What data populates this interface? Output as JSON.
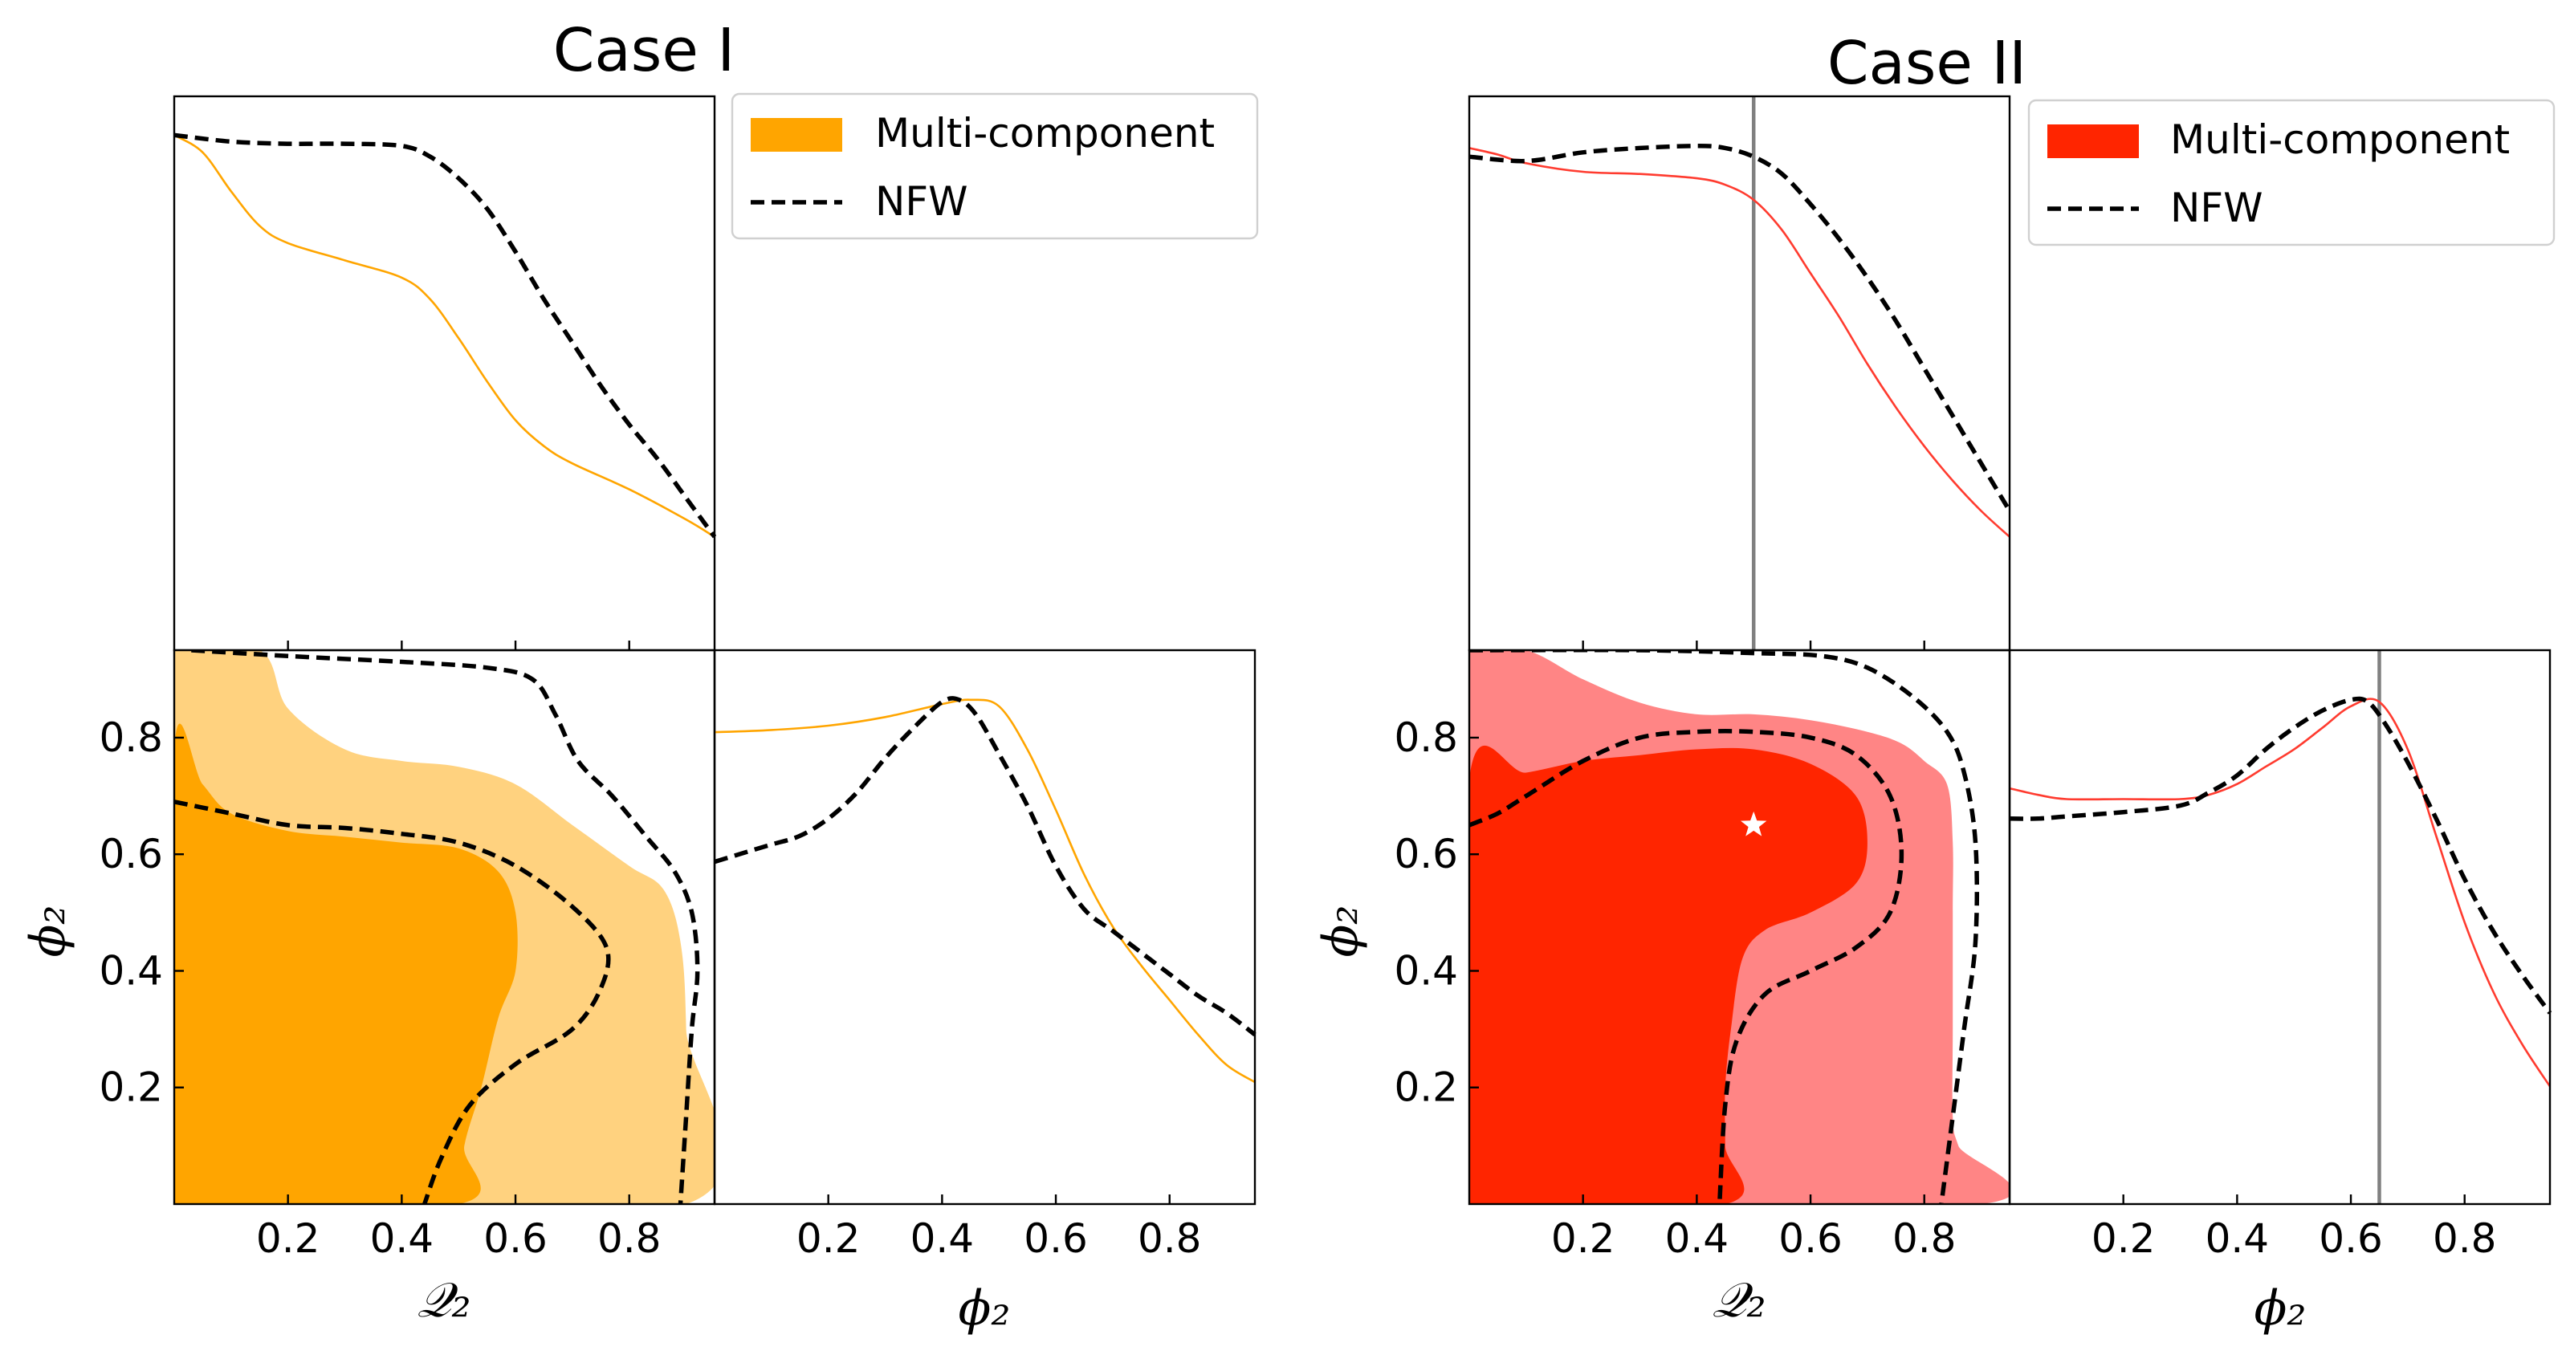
{
  "colors": {
    "case1_line": "#FFA500",
    "case1_fill_1sigma": "#FFA500",
    "case1_fill_2sigma": "#FFD27F",
    "case2_line": "#FF3B2F",
    "case2_fill_1sigma": "#FF2500",
    "case2_fill_2sigma": "#FF8585",
    "nfw": "#000000",
    "truth_line": "#808080",
    "truth_marker": "#ffffff"
  },
  "chart_data": [
    {
      "type": "corner",
      "title": "Case I",
      "params": [
        "Q2",
        "φ2"
      ],
      "param_labels": {
        "Q2": "𝒬₂",
        "phi2": "ϕ₂"
      },
      "xlabel_left": "𝒬₂",
      "xlabel_right": "ϕ₂",
      "ylabel": "ϕ₂",
      "xlim": [
        0,
        0.95
      ],
      "ylim": [
        0,
        0.95
      ],
      "x_ticks": [
        0.2,
        0.4,
        0.6,
        0.8
      ],
      "x_tick_labels": [
        "0.2",
        "0.4",
        "0.6",
        "0.8"
      ],
      "y_ticks": [
        0.2,
        0.4,
        0.6,
        0.8
      ],
      "y_tick_labels": [
        "0.2",
        "0.4",
        "0.6",
        "0.8"
      ],
      "legend": {
        "position": "top-right",
        "entries": [
          "Multi-component",
          "NFW"
        ]
      },
      "truth": null,
      "marginal_Q2": {
        "multi_component": [
          [
            0.0,
            1.0
          ],
          [
            0.05,
            0.96
          ],
          [
            0.1,
            0.87
          ],
          [
            0.15,
            0.79
          ],
          [
            0.2,
            0.75
          ],
          [
            0.3,
            0.71
          ],
          [
            0.4,
            0.67
          ],
          [
            0.45,
            0.62
          ],
          [
            0.5,
            0.53
          ],
          [
            0.55,
            0.43
          ],
          [
            0.6,
            0.34
          ],
          [
            0.65,
            0.28
          ],
          [
            0.7,
            0.24
          ],
          [
            0.8,
            0.18
          ],
          [
            0.9,
            0.11
          ],
          [
            0.95,
            0.07
          ]
        ],
        "nfw": [
          [
            0.0,
            1.0
          ],
          [
            0.1,
            0.985
          ],
          [
            0.2,
            0.98
          ],
          [
            0.3,
            0.98
          ],
          [
            0.4,
            0.975
          ],
          [
            0.45,
            0.95
          ],
          [
            0.5,
            0.9
          ],
          [
            0.55,
            0.83
          ],
          [
            0.6,
            0.73
          ],
          [
            0.65,
            0.62
          ],
          [
            0.7,
            0.52
          ],
          [
            0.75,
            0.42
          ],
          [
            0.8,
            0.33
          ],
          [
            0.85,
            0.25
          ],
          [
            0.9,
            0.16
          ],
          [
            0.95,
            0.07
          ]
        ]
      },
      "marginal_phi2": {
        "multi_component": [
          [
            0.0,
            0.9
          ],
          [
            0.1,
            0.905
          ],
          [
            0.2,
            0.915
          ],
          [
            0.3,
            0.935
          ],
          [
            0.4,
            0.965
          ],
          [
            0.45,
            0.975
          ],
          [
            0.5,
            0.96
          ],
          [
            0.55,
            0.86
          ],
          [
            0.6,
            0.72
          ],
          [
            0.65,
            0.57
          ],
          [
            0.7,
            0.45
          ],
          [
            0.75,
            0.36
          ],
          [
            0.8,
            0.28
          ],
          [
            0.85,
            0.2
          ],
          [
            0.9,
            0.13
          ],
          [
            0.95,
            0.09
          ]
        ],
        "nfw": [
          [
            0.0,
            0.6
          ],
          [
            0.05,
            0.62
          ],
          [
            0.1,
            0.64
          ],
          [
            0.15,
            0.66
          ],
          [
            0.2,
            0.7
          ],
          [
            0.25,
            0.76
          ],
          [
            0.3,
            0.84
          ],
          [
            0.35,
            0.91
          ],
          [
            0.4,
            0.97
          ],
          [
            0.43,
            0.975
          ],
          [
            0.46,
            0.94
          ],
          [
            0.5,
            0.85
          ],
          [
            0.55,
            0.73
          ],
          [
            0.6,
            0.59
          ],
          [
            0.65,
            0.49
          ],
          [
            0.7,
            0.44
          ],
          [
            0.75,
            0.39
          ],
          [
            0.8,
            0.34
          ],
          [
            0.85,
            0.29
          ],
          [
            0.9,
            0.25
          ],
          [
            0.95,
            0.2
          ]
        ]
      },
      "joint_contours": {
        "multi_component_2sigma": [
          [
            0.0,
            0.0
          ],
          [
            0.0,
            0.95
          ],
          [
            0.15,
            0.95
          ],
          [
            0.2,
            0.85
          ],
          [
            0.3,
            0.78
          ],
          [
            0.4,
            0.76
          ],
          [
            0.5,
            0.75
          ],
          [
            0.6,
            0.72
          ],
          [
            0.7,
            0.65
          ],
          [
            0.8,
            0.58
          ],
          [
            0.86,
            0.54
          ],
          [
            0.89,
            0.45
          ],
          [
            0.9,
            0.3
          ],
          [
            0.9,
            0.0
          ]
        ],
        "multi_component_1sigma": [
          [
            0.0,
            0.0
          ],
          [
            0.0,
            0.78
          ],
          [
            0.05,
            0.72
          ],
          [
            0.1,
            0.67
          ],
          [
            0.2,
            0.64
          ],
          [
            0.3,
            0.63
          ],
          [
            0.4,
            0.62
          ],
          [
            0.5,
            0.61
          ],
          [
            0.57,
            0.57
          ],
          [
            0.6,
            0.5
          ],
          [
            0.6,
            0.4
          ],
          [
            0.57,
            0.32
          ],
          [
            0.54,
            0.2
          ],
          [
            0.51,
            0.1
          ],
          [
            0.5,
            0.0
          ]
        ],
        "nfw_1sigma": [
          [
            0.0,
            0.69
          ],
          [
            0.1,
            0.67
          ],
          [
            0.2,
            0.65
          ],
          [
            0.3,
            0.645
          ],
          [
            0.4,
            0.635
          ],
          [
            0.5,
            0.62
          ],
          [
            0.6,
            0.58
          ],
          [
            0.7,
            0.51
          ],
          [
            0.76,
            0.44
          ],
          [
            0.75,
            0.37
          ],
          [
            0.7,
            0.3
          ],
          [
            0.6,
            0.24
          ],
          [
            0.52,
            0.17
          ],
          [
            0.47,
            0.08
          ],
          [
            0.44,
            0.0
          ]
        ],
        "nfw_2sigma": [
          [
            0.03,
            0.95
          ],
          [
            0.2,
            0.94
          ],
          [
            0.4,
            0.93
          ],
          [
            0.55,
            0.92
          ],
          [
            0.63,
            0.9
          ],
          [
            0.67,
            0.84
          ],
          [
            0.71,
            0.76
          ],
          [
            0.77,
            0.7
          ],
          [
            0.83,
            0.63
          ],
          [
            0.88,
            0.57
          ],
          [
            0.91,
            0.5
          ],
          [
            0.92,
            0.4
          ],
          [
            0.91,
            0.3
          ],
          [
            0.9,
            0.15
          ],
          [
            0.89,
            0.0
          ]
        ]
      }
    },
    {
      "type": "corner",
      "title": "Case II",
      "params": [
        "Q2",
        "φ2"
      ],
      "param_labels": {
        "Q2": "𝒬₂",
        "phi2": "ϕ₂"
      },
      "xlabel_left": "𝒬₂",
      "xlabel_right": "ϕ₂",
      "ylabel": "ϕ₂",
      "xlim": [
        0,
        0.95
      ],
      "ylim": [
        0,
        0.95
      ],
      "x_ticks": [
        0.2,
        0.4,
        0.6,
        0.8
      ],
      "x_tick_labels": [
        "0.2",
        "0.4",
        "0.6",
        "0.8"
      ],
      "y_ticks": [
        0.2,
        0.4,
        0.6,
        0.8
      ],
      "y_tick_labels": [
        "0.2",
        "0.4",
        "0.6",
        "0.8"
      ],
      "legend": {
        "position": "top-right",
        "entries": [
          "Multi-component",
          "NFW"
        ]
      },
      "truth": {
        "Q2": 0.5,
        "phi2": 0.65
      },
      "marginal_Q2": {
        "multi_component": [
          [
            0.0,
            0.97
          ],
          [
            0.05,
            0.955
          ],
          [
            0.1,
            0.935
          ],
          [
            0.2,
            0.915
          ],
          [
            0.3,
            0.91
          ],
          [
            0.4,
            0.9
          ],
          [
            0.45,
            0.885
          ],
          [
            0.5,
            0.85
          ],
          [
            0.55,
            0.78
          ],
          [
            0.6,
            0.68
          ],
          [
            0.65,
            0.58
          ],
          [
            0.7,
            0.47
          ],
          [
            0.75,
            0.37
          ],
          [
            0.8,
            0.28
          ],
          [
            0.85,
            0.2
          ],
          [
            0.9,
            0.13
          ],
          [
            0.95,
            0.07
          ]
        ],
        "nfw": [
          [
            0.0,
            0.95
          ],
          [
            0.1,
            0.94
          ],
          [
            0.2,
            0.96
          ],
          [
            0.3,
            0.97
          ],
          [
            0.4,
            0.975
          ],
          [
            0.45,
            0.97
          ],
          [
            0.5,
            0.95
          ],
          [
            0.55,
            0.91
          ],
          [
            0.6,
            0.84
          ],
          [
            0.65,
            0.76
          ],
          [
            0.7,
            0.67
          ],
          [
            0.75,
            0.57
          ],
          [
            0.8,
            0.46
          ],
          [
            0.85,
            0.35
          ],
          [
            0.9,
            0.24
          ],
          [
            0.95,
            0.13
          ]
        ]
      },
      "marginal_phi2": {
        "multi_component": [
          [
            0.0,
            0.77
          ],
          [
            0.05,
            0.755
          ],
          [
            0.1,
            0.745
          ],
          [
            0.2,
            0.745
          ],
          [
            0.3,
            0.745
          ],
          [
            0.35,
            0.755
          ],
          [
            0.4,
            0.78
          ],
          [
            0.45,
            0.82
          ],
          [
            0.5,
            0.86
          ],
          [
            0.55,
            0.91
          ],
          [
            0.6,
            0.96
          ],
          [
            0.65,
            0.97
          ],
          [
            0.7,
            0.86
          ],
          [
            0.75,
            0.66
          ],
          [
            0.8,
            0.46
          ],
          [
            0.85,
            0.3
          ],
          [
            0.9,
            0.18
          ],
          [
            0.95,
            0.08
          ]
        ],
        "nfw": [
          [
            0.0,
            0.7
          ],
          [
            0.05,
            0.7
          ],
          [
            0.1,
            0.705
          ],
          [
            0.2,
            0.715
          ],
          [
            0.3,
            0.73
          ],
          [
            0.35,
            0.76
          ],
          [
            0.4,
            0.8
          ],
          [
            0.45,
            0.86
          ],
          [
            0.5,
            0.91
          ],
          [
            0.55,
            0.95
          ],
          [
            0.6,
            0.975
          ],
          [
            0.63,
            0.97
          ],
          [
            0.66,
            0.92
          ],
          [
            0.7,
            0.83
          ],
          [
            0.75,
            0.7
          ],
          [
            0.8,
            0.56
          ],
          [
            0.85,
            0.44
          ],
          [
            0.9,
            0.34
          ],
          [
            0.95,
            0.25
          ]
        ]
      },
      "joint_contours": {
        "multi_component_2sigma": [
          [
            0.0,
            0.0
          ],
          [
            0.0,
            0.95
          ],
          [
            0.1,
            0.95
          ],
          [
            0.2,
            0.9
          ],
          [
            0.3,
            0.86
          ],
          [
            0.4,
            0.84
          ],
          [
            0.5,
            0.84
          ],
          [
            0.6,
            0.83
          ],
          [
            0.7,
            0.81
          ],
          [
            0.76,
            0.79
          ],
          [
            0.8,
            0.76
          ],
          [
            0.84,
            0.72
          ],
          [
            0.85,
            0.62
          ],
          [
            0.85,
            0.5
          ],
          [
            0.85,
            0.3
          ],
          [
            0.85,
            0.15
          ],
          [
            0.86,
            0.1
          ],
          [
            0.9,
            0.0
          ]
        ],
        "multi_component_1sigma": [
          [
            0.0,
            0.0
          ],
          [
            0.0,
            0.73
          ],
          [
            0.1,
            0.74
          ],
          [
            0.2,
            0.76
          ],
          [
            0.3,
            0.77
          ],
          [
            0.4,
            0.78
          ],
          [
            0.5,
            0.78
          ],
          [
            0.6,
            0.755
          ],
          [
            0.68,
            0.7
          ],
          [
            0.7,
            0.62
          ],
          [
            0.68,
            0.55
          ],
          [
            0.6,
            0.5
          ],
          [
            0.52,
            0.47
          ],
          [
            0.48,
            0.42
          ],
          [
            0.46,
            0.3
          ],
          [
            0.45,
            0.2
          ],
          [
            0.45,
            0.1
          ],
          [
            0.45,
            0.0
          ]
        ],
        "nfw_1sigma": [
          [
            0.0,
            0.65
          ],
          [
            0.05,
            0.67
          ],
          [
            0.1,
            0.7
          ],
          [
            0.2,
            0.76
          ],
          [
            0.3,
            0.8
          ],
          [
            0.4,
            0.81
          ],
          [
            0.5,
            0.81
          ],
          [
            0.6,
            0.8
          ],
          [
            0.68,
            0.77
          ],
          [
            0.74,
            0.7
          ],
          [
            0.76,
            0.6
          ],
          [
            0.74,
            0.5
          ],
          [
            0.68,
            0.44
          ],
          [
            0.6,
            0.4
          ],
          [
            0.52,
            0.36
          ],
          [
            0.47,
            0.28
          ],
          [
            0.45,
            0.17
          ],
          [
            0.44,
            0.0
          ]
        ],
        "nfw_2sigma": [
          [
            0.0,
            0.95
          ],
          [
            0.3,
            0.95
          ],
          [
            0.5,
            0.945
          ],
          [
            0.62,
            0.94
          ],
          [
            0.7,
            0.92
          ],
          [
            0.78,
            0.87
          ],
          [
            0.84,
            0.81
          ],
          [
            0.87,
            0.74
          ],
          [
            0.89,
            0.62
          ],
          [
            0.89,
            0.45
          ],
          [
            0.87,
            0.3
          ],
          [
            0.85,
            0.15
          ],
          [
            0.83,
            0.0
          ]
        ]
      }
    }
  ]
}
